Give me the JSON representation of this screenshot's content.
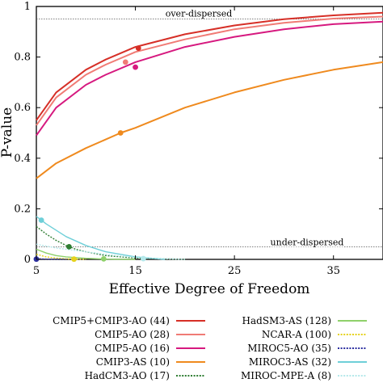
{
  "chart_data": {
    "type": "line",
    "title": "",
    "xlabel": "Effective Degree of Freedom",
    "ylabel": "P-value",
    "xlim": [
      5,
      40
    ],
    "ylim": [
      0,
      1
    ],
    "x_ticks": [
      5,
      15,
      25,
      35
    ],
    "y_ticks": [
      0,
      0.2,
      0.4,
      0.6,
      0.8,
      1
    ],
    "x_tick_labels": [
      "5",
      "15",
      "25",
      "35"
    ],
    "y_tick_labels": [
      "0",
      "0.2",
      "0.4",
      "0.6",
      "0.8",
      "1"
    ],
    "grid": false,
    "legend_position": "bottom",
    "reference_lines": [
      {
        "label": "over-dispersed",
        "y": 0.95
      },
      {
        "label": "under-dispersed",
        "y": 0.05
      }
    ],
    "series": [
      {
        "name": "CMIP5+CMIP3-AO (44)",
        "color": "#d62f27",
        "style": "solid",
        "group": "high",
        "x": [
          5,
          7,
          10,
          12,
          15,
          20,
          25,
          30,
          35,
          40
        ],
        "y": [
          0.55,
          0.66,
          0.75,
          0.79,
          0.84,
          0.89,
          0.925,
          0.95,
          0.965,
          0.975
        ],
        "marker": {
          "x": 15.3,
          "y": 0.835
        }
      },
      {
        "name": "CMIP5-AO (28)",
        "color": "#f07b75",
        "style": "solid",
        "group": "high",
        "x": [
          5,
          7,
          10,
          12,
          15,
          20,
          25,
          30,
          35,
          40
        ],
        "y": [
          0.53,
          0.64,
          0.73,
          0.77,
          0.82,
          0.87,
          0.91,
          0.935,
          0.952,
          0.96
        ],
        "marker": {
          "x": 14,
          "y": 0.78
        }
      },
      {
        "name": "CMIP5-AO (16)",
        "color": "#d6197f",
        "style": "solid",
        "group": "high",
        "x": [
          5,
          7,
          10,
          12,
          15,
          20,
          25,
          30,
          35,
          40
        ],
        "y": [
          0.49,
          0.6,
          0.69,
          0.73,
          0.78,
          0.84,
          0.88,
          0.91,
          0.93,
          0.94
        ],
        "marker": {
          "x": 15,
          "y": 0.76
        }
      },
      {
        "name": "CMIP3-AS (10)",
        "color": "#ef8a1e",
        "style": "solid",
        "group": "high",
        "x": [
          5,
          7,
          10,
          13.5,
          15,
          20,
          25,
          30,
          35,
          40
        ],
        "y": [
          0.32,
          0.38,
          0.44,
          0.5,
          0.52,
          0.6,
          0.66,
          0.71,
          0.75,
          0.78
        ],
        "marker": {
          "x": 13.5,
          "y": 0.5
        }
      },
      {
        "name": "HadCM3-AO (17)",
        "color": "#2e7d32",
        "style": "dotted",
        "group": "low",
        "x": [
          5,
          6,
          7,
          8,
          9,
          10,
          12,
          15,
          20
        ],
        "y": [
          0.13,
          0.1,
          0.075,
          0.055,
          0.04,
          0.03,
          0.015,
          0.005,
          0
        ],
        "marker": {
          "x": 8.3,
          "y": 0.05
        }
      },
      {
        "name": "HadSM3-AS (128)",
        "color": "#8fd16a",
        "style": "solid",
        "group": "low",
        "x": [
          5,
          6,
          7,
          8,
          10,
          12,
          15
        ],
        "y": [
          0.04,
          0.025,
          0.015,
          0.01,
          0.004,
          0.001,
          0
        ],
        "marker": {
          "x": 11.8,
          "y": 0.002
        }
      },
      {
        "name": "NCAR-A (100)",
        "color": "#e6d21c",
        "style": "dotted",
        "group": "low",
        "x": [
          5,
          6,
          7,
          8,
          10
        ],
        "y": [
          0.02,
          0.01,
          0.005,
          0.002,
          0
        ],
        "marker": {
          "x": 8.8,
          "y": 0.001
        }
      },
      {
        "name": "MIROC5-AO (35)",
        "color": "#2c2fa0",
        "style": "dotted",
        "group": "low",
        "x": [
          5,
          6,
          8
        ],
        "y": [
          0.003,
          0.001,
          0
        ],
        "marker": {
          "x": 5,
          "y": 0.001
        }
      },
      {
        "name": "MIROC3-AS (32)",
        "color": "#6ecfd8",
        "style": "solid",
        "group": "low",
        "x": [
          5,
          6,
          8,
          10,
          12,
          15,
          18
        ],
        "y": [
          0.17,
          0.14,
          0.09,
          0.055,
          0.03,
          0.01,
          0
        ],
        "marker": {
          "x": 5.5,
          "y": 0.155
        }
      },
      {
        "name": "MIROC-MPE-A (8)",
        "color": "#b4e8ea",
        "style": "dotted",
        "group": "low",
        "x": [
          5,
          7,
          10,
          13,
          16,
          20
        ],
        "y": [
          0.06,
          0.045,
          0.03,
          0.015,
          0.005,
          0
        ],
        "marker": {
          "x": 15.8,
          "y": 0.003
        }
      }
    ]
  }
}
